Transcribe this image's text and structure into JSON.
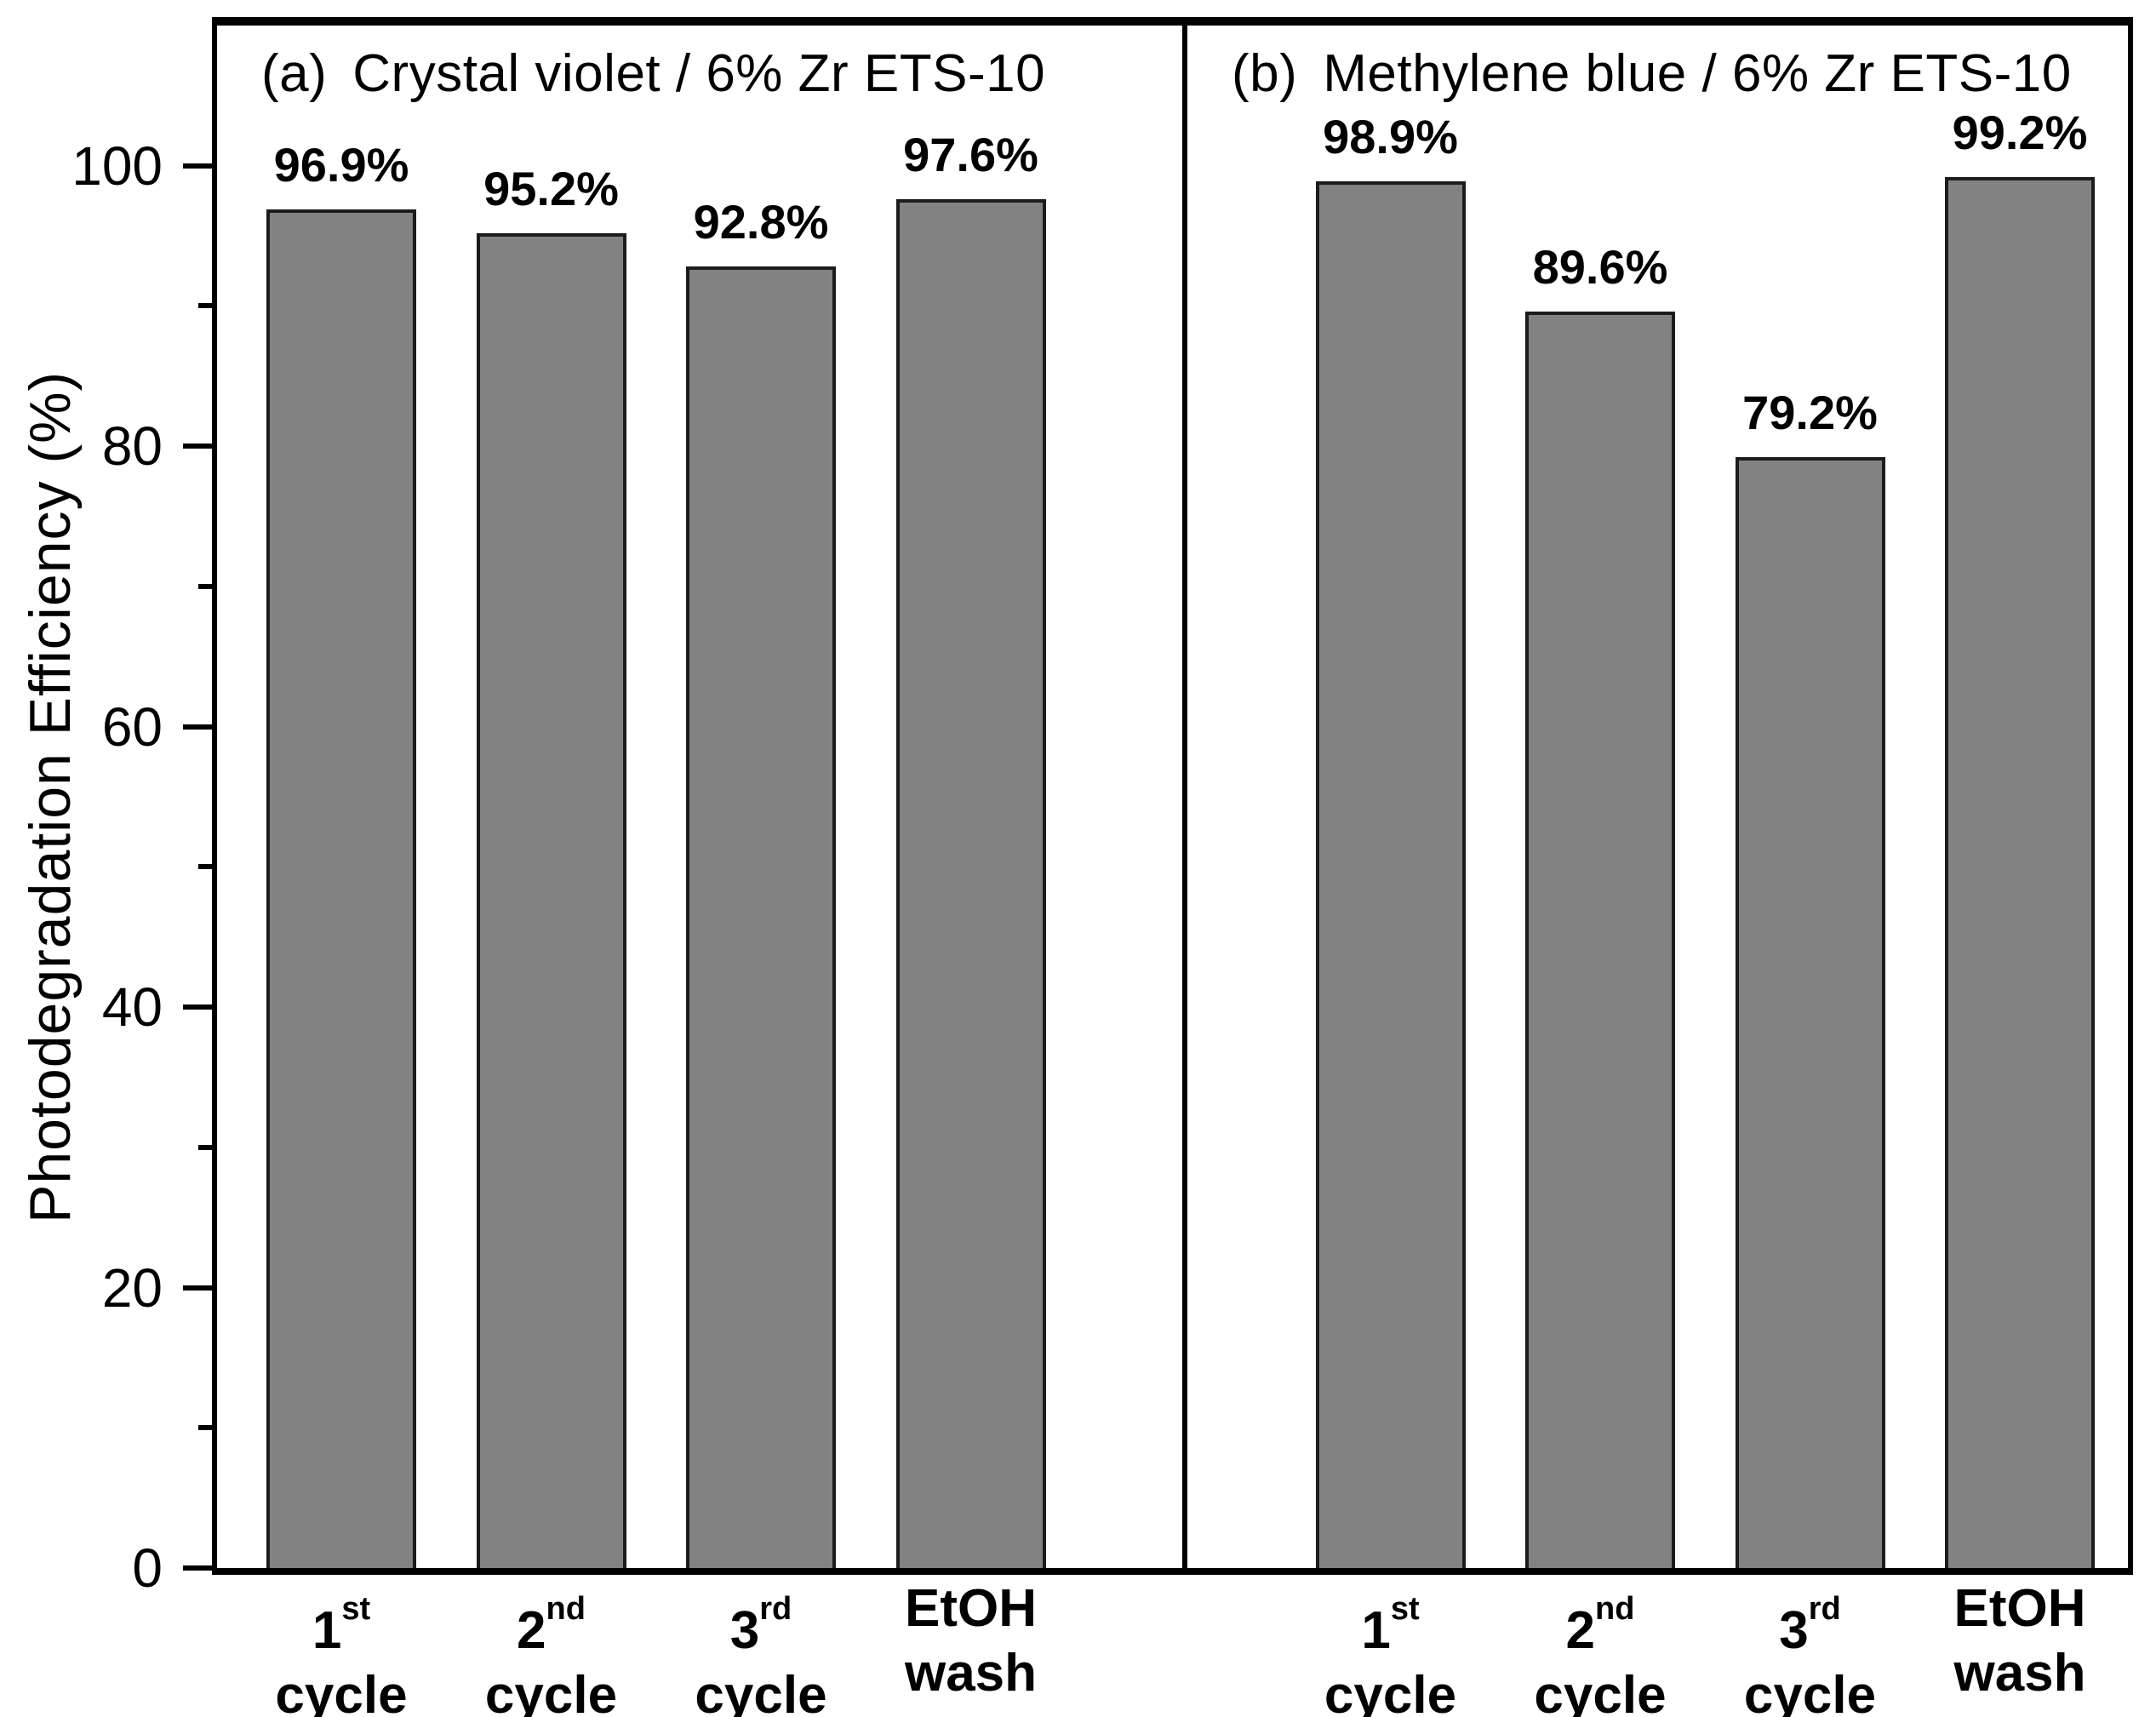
{
  "chart_data": {
    "type": "bar",
    "ylabel": "Photodegradation Efficiency (%)",
    "ylim": [
      0,
      110
    ],
    "yticks_major": [
      0,
      20,
      40,
      60,
      80,
      100
    ],
    "yticks_minor": [
      10,
      30,
      50,
      70,
      90
    ],
    "grid": "off",
    "legend": "none",
    "bar_fill_color": "#828282",
    "bar_border_color": "#1c1c1c",
    "axis_color": "#000000",
    "panels": [
      {
        "label": "(a)",
        "title": "Crystal violet / 6% Zr ETS-10",
        "categories": [
          "1st cycle",
          "2nd cycle",
          "3rd cycle",
          "EtOH wash"
        ],
        "categories_rich": [
          {
            "line1": "1",
            "sup": "st",
            "line2": "cycle"
          },
          {
            "line1": "2",
            "sup": "nd",
            "line2": "cycle"
          },
          {
            "line1": "3",
            "sup": "rd",
            "line2": "cycle"
          },
          {
            "line1": "EtOH",
            "sup": "",
            "line2": "wash"
          }
        ],
        "values": [
          96.9,
          95.2,
          92.8,
          97.6
        ],
        "value_labels": [
          "96.9%",
          "95.2%",
          "92.8%",
          "97.6%"
        ]
      },
      {
        "label": "(b)",
        "title": "Methylene blue / 6% Zr ETS-10",
        "categories": [
          "1st cycle",
          "2nd cycle",
          "3rd cycle",
          "EtOH wash"
        ],
        "categories_rich": [
          {
            "line1": "1",
            "sup": "st",
            "line2": "cycle"
          },
          {
            "line1": "2",
            "sup": "nd",
            "line2": "cycle"
          },
          {
            "line1": "3",
            "sup": "rd",
            "line2": "cycle"
          },
          {
            "line1": "EtOH",
            "sup": "",
            "line2": "wash"
          }
        ],
        "values": [
          98.9,
          89.6,
          79.2,
          99.2
        ],
        "value_labels": [
          "98.9%",
          "89.6%",
          "79.2%",
          "99.2%"
        ]
      }
    ]
  }
}
